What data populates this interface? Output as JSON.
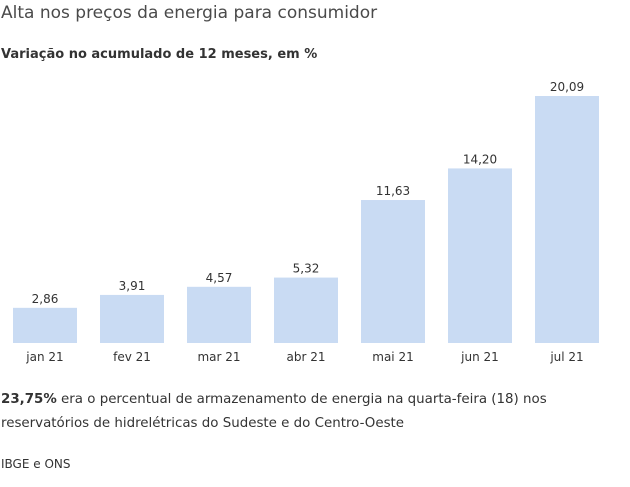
{
  "title": "Alta nos preços da energia para consumidor",
  "subtitle": "Variação no acumulado de 12 meses, em %",
  "chart_data": {
    "type": "bar",
    "title": "Alta nos preços da energia para consumidor",
    "subtitle": "Variação no acumulado de 12 meses, em %",
    "categories": [
      "jan 21",
      "fev 21",
      "mar 21",
      "abr 21",
      "mai 21",
      "jun 21",
      "jul 21"
    ],
    "values": [
      2.86,
      3.91,
      4.57,
      5.32,
      11.63,
      14.2,
      20.09
    ],
    "value_labels": [
      "2,86",
      "3,91",
      "4,57",
      "5,32",
      "11,63",
      "14,20",
      "20,09"
    ],
    "xlabel": "",
    "ylabel": "",
    "ylim": [
      0,
      20.09
    ],
    "grid": false,
    "legend": "none",
    "bar_color": "#c9dbf3"
  },
  "note": {
    "highlight": "23,75%",
    "text": " era o percentual de armazenamento de energia na quarta-feira (18) nos reservatórios de hidrelétricas do Sudeste e do Centro-Oeste"
  },
  "source": "IBGE e ONS"
}
